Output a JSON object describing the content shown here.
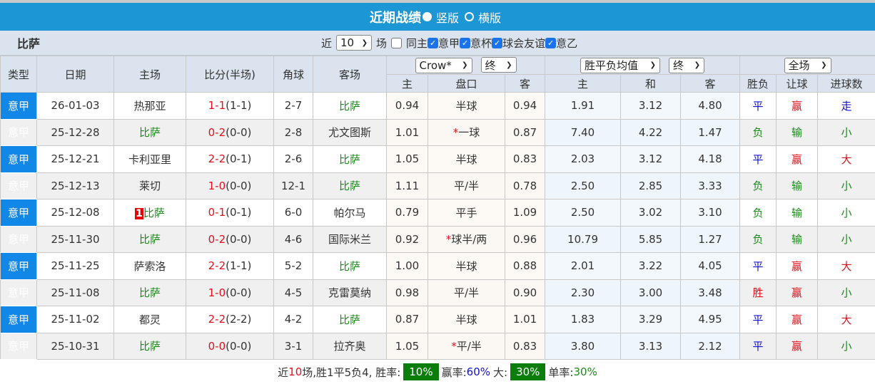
{
  "title": {
    "text": "近期战绩",
    "options": [
      {
        "label": "竖版",
        "selected": true
      },
      {
        "label": "横版",
        "selected": false
      }
    ]
  },
  "filter": {
    "team": "比萨",
    "near_label": "近",
    "count": "10",
    "unit_label": "场",
    "checkboxes": [
      {
        "label": "同主",
        "checked": false
      },
      {
        "label": "意甲",
        "checked": true
      },
      {
        "label": "意杯",
        "checked": true
      },
      {
        "label": "球会友谊",
        "checked": true
      },
      {
        "label": "意乙",
        "checked": true
      }
    ]
  },
  "header": {
    "type": "类型",
    "date": "日期",
    "home": "主场",
    "score": "比分(半场)",
    "corner": "角球",
    "away": "客场",
    "asian_company": "Crow*",
    "asian_stage": "终",
    "euro_kind": "胜平负均值",
    "euro_stage": "终",
    "period": "全场",
    "sub": [
      "主",
      "盘口",
      "客",
      "主",
      "和",
      "客",
      "胜负",
      "让球",
      "进球数"
    ]
  },
  "colors": {
    "type_bg": "#1187e8",
    "title_bg": "#1c96d4",
    "win": "#e0101a",
    "draw": "#1010d0",
    "loss": "#1a8a1a",
    "footer_box": "#0a7d0a"
  },
  "rows": [
    {
      "type": "意甲",
      "date": "26-01-03",
      "home": "热那亚",
      "home_rank": "",
      "home_is_team": false,
      "ft": "1-1",
      "ht": "(1-1)",
      "corner": "2-7",
      "away": "比萨",
      "away_is_team": true,
      "a_home": "0.94",
      "handicap": "半球",
      "star": false,
      "a_away": "0.94",
      "e_home": "1.91",
      "e_draw": "3.12",
      "e_away": "4.80",
      "wdl": "平",
      "ah": "赢",
      "ou": "走"
    },
    {
      "type": "意甲",
      "date": "25-12-28",
      "home": "比萨",
      "home_rank": "",
      "home_is_team": true,
      "ft": "0-2",
      "ht": "(0-0)",
      "corner": "2-8",
      "away": "尤文图斯",
      "away_is_team": false,
      "a_home": "1.01",
      "handicap": "一球",
      "star": true,
      "a_away": "0.87",
      "e_home": "7.40",
      "e_draw": "4.22",
      "e_away": "1.47",
      "wdl": "负",
      "ah": "输",
      "ou": "小"
    },
    {
      "type": "意甲",
      "date": "25-12-21",
      "home": "卡利亚里",
      "home_rank": "",
      "home_is_team": false,
      "ft": "2-2",
      "ht": "(0-1)",
      "corner": "2-6",
      "away": "比萨",
      "away_is_team": true,
      "a_home": "1.05",
      "handicap": "半球",
      "star": false,
      "a_away": "0.83",
      "e_home": "2.03",
      "e_draw": "3.12",
      "e_away": "4.18",
      "wdl": "平",
      "ah": "赢",
      "ou": "大"
    },
    {
      "type": "意甲",
      "date": "25-12-13",
      "home": "莱切",
      "home_rank": "",
      "home_is_team": false,
      "ft": "1-0",
      "ht": "(0-0)",
      "corner": "12-1",
      "away": "比萨",
      "away_is_team": true,
      "a_home": "1.11",
      "handicap": "平/半",
      "star": false,
      "a_away": "0.78",
      "e_home": "2.50",
      "e_draw": "2.85",
      "e_away": "3.33",
      "wdl": "负",
      "ah": "输",
      "ou": "小"
    },
    {
      "type": "意甲",
      "date": "25-12-08",
      "home": "比萨",
      "home_rank": "1",
      "home_is_team": true,
      "ft": "0-1",
      "ht": "(0-1)",
      "corner": "6-0",
      "away": "帕尔马",
      "away_is_team": false,
      "a_home": "0.79",
      "handicap": "平手",
      "star": false,
      "a_away": "1.09",
      "e_home": "2.50",
      "e_draw": "3.02",
      "e_away": "3.10",
      "wdl": "负",
      "ah": "输",
      "ou": "小"
    },
    {
      "type": "意甲",
      "date": "25-11-30",
      "home": "比萨",
      "home_rank": "",
      "home_is_team": true,
      "ft": "0-2",
      "ht": "(0-0)",
      "corner": "4-6",
      "away": "国际米兰",
      "away_is_team": false,
      "a_home": "0.92",
      "handicap": "球半/两",
      "star": true,
      "a_away": "0.96",
      "e_home": "10.79",
      "e_draw": "5.85",
      "e_away": "1.27",
      "wdl": "负",
      "ah": "输",
      "ou": "小"
    },
    {
      "type": "意甲",
      "date": "25-11-25",
      "home": "萨索洛",
      "home_rank": "",
      "home_is_team": false,
      "ft": "2-2",
      "ht": "(1-1)",
      "corner": "5-2",
      "away": "比萨",
      "away_is_team": true,
      "a_home": "1.00",
      "handicap": "半球",
      "star": false,
      "a_away": "0.88",
      "e_home": "2.01",
      "e_draw": "3.22",
      "e_away": "4.05",
      "wdl": "平",
      "ah": "赢",
      "ou": "大"
    },
    {
      "type": "意甲",
      "date": "25-11-08",
      "home": "比萨",
      "home_rank": "",
      "home_is_team": true,
      "ft": "1-0",
      "ht": "(0-0)",
      "corner": "4-5",
      "away": "克雷莫纳",
      "away_is_team": false,
      "a_home": "0.98",
      "handicap": "平/半",
      "star": false,
      "a_away": "0.90",
      "e_home": "2.30",
      "e_draw": "3.00",
      "e_away": "3.48",
      "wdl": "胜",
      "ah": "赢",
      "ou": "小"
    },
    {
      "type": "意甲",
      "date": "25-11-02",
      "home": "都灵",
      "home_rank": "",
      "home_is_team": false,
      "ft": "2-2",
      "ht": "(2-2)",
      "corner": "4-2",
      "away": "比萨",
      "away_is_team": true,
      "a_home": "0.87",
      "handicap": "半球",
      "star": false,
      "a_away": "1.01",
      "e_home": "1.83",
      "e_draw": "3.29",
      "e_away": "4.95",
      "wdl": "平",
      "ah": "赢",
      "ou": "大"
    },
    {
      "type": "意甲",
      "date": "25-10-31",
      "home": "比萨",
      "home_rank": "",
      "home_is_team": true,
      "ft": "0-0",
      "ht": "(0-0)",
      "corner": "3-1",
      "away": "拉齐奥",
      "away_is_team": false,
      "a_home": "1.05",
      "handicap": "平/半",
      "star": true,
      "a_away": "0.83",
      "e_home": "3.80",
      "e_draw": "3.13",
      "e_away": "2.12",
      "wdl": "平",
      "ah": "赢",
      "ou": "小"
    }
  ],
  "footer": {
    "p1": "近",
    "count": "10",
    "p2": "场,胜1平5负4, 胜率:",
    "win_rate": "10%",
    "p3": "赢率:",
    "ah_rate": "60%",
    "p4": "大:",
    "over_rate": "30%",
    "p5": "单率:",
    "odd_rate": "30%"
  }
}
